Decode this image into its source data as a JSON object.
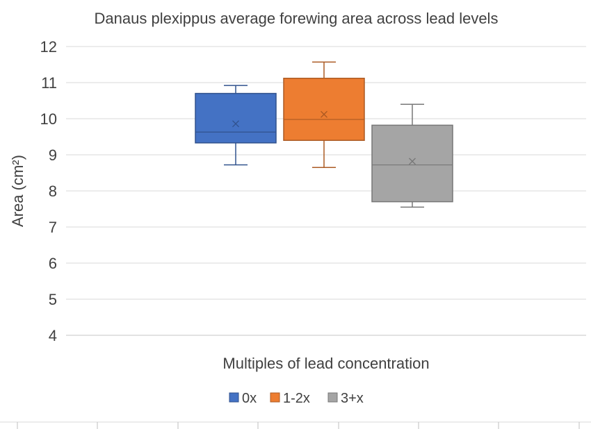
{
  "chart_data": {
    "type": "box",
    "title": "Danaus plexippus average forewing area across lead levels",
    "xlabel": "Multiples of lead concentration",
    "ylabel": "Area (cm²)",
    "ylim": [
      4,
      12
    ],
    "yticks": [
      4,
      5,
      6,
      7,
      8,
      9,
      10,
      11,
      12
    ],
    "grid": true,
    "legend_position": "bottom",
    "series": [
      {
        "name": "0x",
        "color": "#4472C4",
        "min": 8.72,
        "q1": 9.33,
        "median": 9.63,
        "q3": 10.7,
        "max": 10.92,
        "mean": 9.86
      },
      {
        "name": "1-2x",
        "color": "#ED7D31",
        "min": 8.65,
        "q1": 9.4,
        "median": 9.98,
        "q3": 11.12,
        "max": 11.57,
        "mean": 10.12
      },
      {
        "name": "3+x",
        "color": "#A5A5A5",
        "min": 7.55,
        "q1": 7.7,
        "median": 8.72,
        "q3": 9.82,
        "max": 10.4,
        "mean": 8.82
      }
    ]
  }
}
